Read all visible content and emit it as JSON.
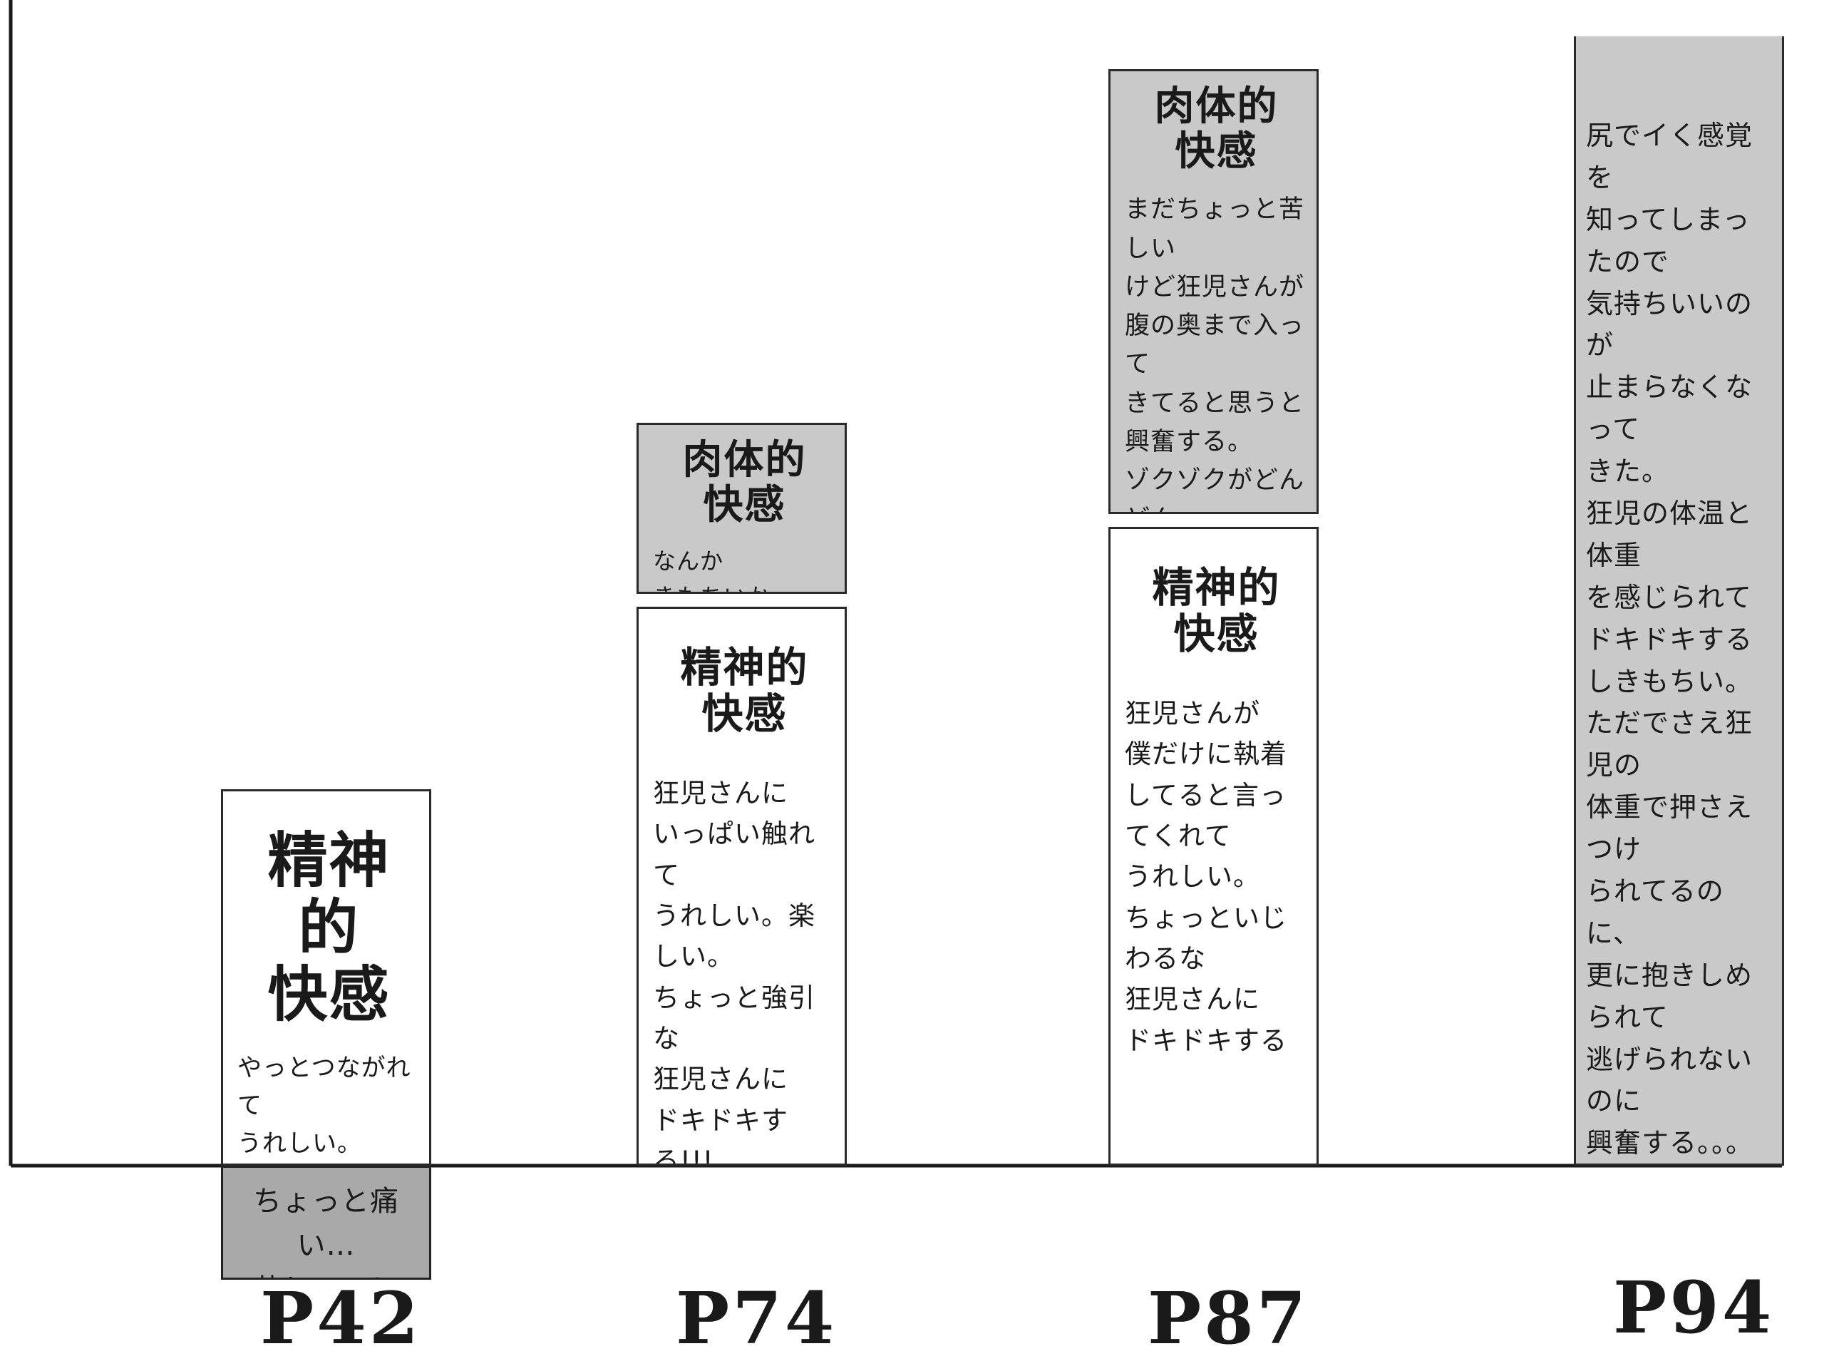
{
  "chart_data": {
    "type": "bar",
    "stacked": true,
    "categories": [
      "P42",
      "P74",
      "P87",
      "P94"
    ],
    "axes": {
      "x_axis": true,
      "y_axis": true,
      "tick_labels": false,
      "grid": false
    },
    "series": [
      {
        "segment": "negative",
        "values": [
          -1,
          0,
          0,
          0
        ],
        "texts": [
          "ちょっと痛い…\n苦しい…？",
          "",
          "",
          ""
        ]
      },
      {
        "segment": "mental",
        "title": "精神的\n快感",
        "values": [
          3.3,
          4.9,
          5.6,
          0
        ],
        "texts": [
          "やっとつながれて\nうれしい。\n狂児さん必死で\nかわええなあ…",
          "狂児さんに\nいっぱい触れて\nうれしい。楽しい。\nちょっと強引な\n狂児さんに\nドキドキする!!!",
          "狂児さんが\n僕だけに執着\nしてると言ってくれて\nうれしい。\nちょっといじわるな\n狂児さんに\nドキドキする",
          ""
        ]
      },
      {
        "segment": "physical",
        "title": "肉体的\n快感",
        "values": [
          0,
          1.5,
          3.9,
          9.9
        ],
        "titles_shown": [
          false,
          true,
          true,
          false
        ],
        "texts": [
          "",
          "なんか\nきもちいかも…？",
          "まだちょっと苦しい\nけど狂児さんが\n腹の奥まで入って\nきてると思うと\n興奮する。\nゾクゾクがどんどん\n快感になってきた。",
          "尻でイく感覚を\n知ってしまったので\n気持ちいいのが\n止まらなくなって\nきた。\n狂児の体温と体重\nを感じられて\nドキドキするしきもちい。\nただでさえ狂児の\n体重で押さえつけ\nられてるのに、\n更に抱きしめられて\n逃げられないのに\n興奮する。。。\n狂児の息が首や耳に\nかかるとドキドキする。"
        ]
      }
    ],
    "colors": {
      "mental": "#ffffff",
      "physical": "#c9c9c9",
      "negative": "#a9a9a9",
      "ink": "#1a1a1a"
    }
  }
}
